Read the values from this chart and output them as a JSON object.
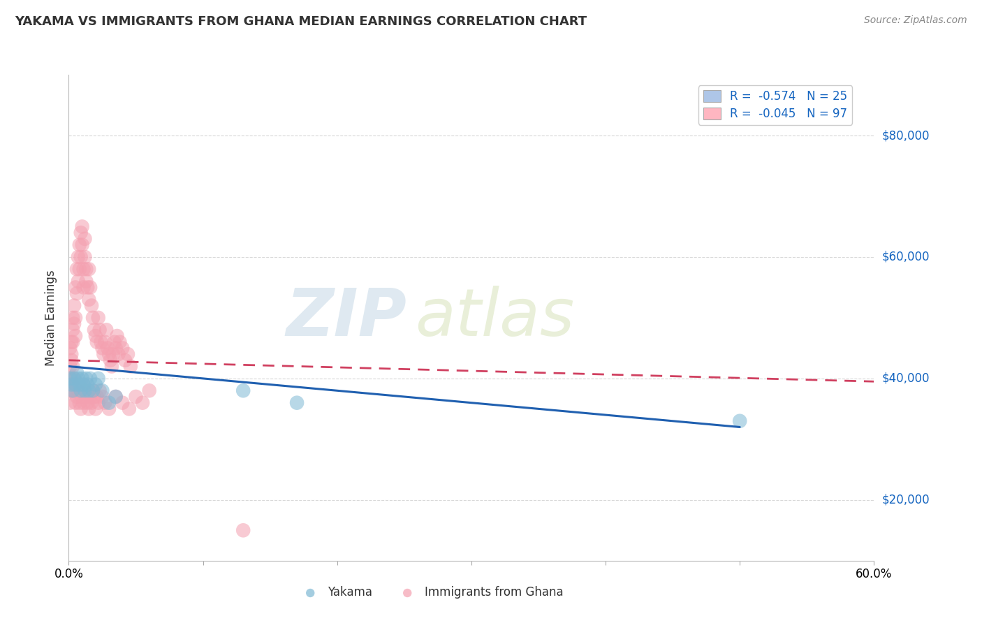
{
  "title": "YAKAMA VS IMMIGRANTS FROM GHANA MEDIAN EARNINGS CORRELATION CHART",
  "source_text": "Source: ZipAtlas.com",
  "ylabel": "Median Earnings",
  "yticks": [
    20000,
    40000,
    60000,
    80000
  ],
  "ytick_labels": [
    "$20,000",
    "$40,000",
    "$60,000",
    "$80,000"
  ],
  "legend_entries": [
    {
      "label": "R =  -0.574   N = 25",
      "facecolor": "#aec6e8"
    },
    {
      "label": "R =  -0.045   N = 97",
      "facecolor": "#ffb6c1"
    }
  ],
  "series1_name": "Yakama",
  "series2_name": "Immigrants from Ghana",
  "series1_color": "#7eb8d4",
  "series2_color": "#f4a0b0",
  "series1_line_color": "#2060b0",
  "series2_line_color": "#d04060",
  "watermark_text": "ZIP",
  "watermark_text2": "atlas",
  "background_color": "#ffffff",
  "plot_bg_color": "#ffffff",
  "grid_color": "#d8d8d8",
  "grid_style": "--",
  "xlim": [
    0.0,
    0.6
  ],
  "ylim": [
    10000,
    90000
  ],
  "xaxis_left_label": "0.0%",
  "xaxis_right_label": "60.0%",
  "yakama_x": [
    0.001,
    0.002,
    0.003,
    0.004,
    0.005,
    0.006,
    0.007,
    0.008,
    0.009,
    0.01,
    0.011,
    0.012,
    0.013,
    0.014,
    0.015,
    0.016,
    0.018,
    0.02,
    0.022,
    0.025,
    0.03,
    0.035,
    0.13,
    0.17,
    0.5
  ],
  "yakama_y": [
    40000,
    39000,
    38000,
    40000,
    39000,
    41000,
    40000,
    39000,
    38000,
    40000,
    39000,
    38000,
    40000,
    39000,
    38000,
    40000,
    38000,
    39000,
    40000,
    38000,
    36000,
    37000,
    38000,
    36000,
    33000
  ],
  "ghana_x": [
    0.001,
    0.001,
    0.001,
    0.002,
    0.002,
    0.002,
    0.003,
    0.003,
    0.003,
    0.004,
    0.004,
    0.005,
    0.005,
    0.005,
    0.006,
    0.006,
    0.007,
    0.007,
    0.008,
    0.008,
    0.009,
    0.009,
    0.01,
    0.01,
    0.011,
    0.011,
    0.012,
    0.012,
    0.013,
    0.013,
    0.014,
    0.015,
    0.015,
    0.016,
    0.017,
    0.018,
    0.019,
    0.02,
    0.021,
    0.022,
    0.023,
    0.024,
    0.025,
    0.026,
    0.027,
    0.028,
    0.029,
    0.03,
    0.031,
    0.032,
    0.033,
    0.034,
    0.035,
    0.036,
    0.037,
    0.038,
    0.04,
    0.042,
    0.044,
    0.046,
    0.001,
    0.001,
    0.002,
    0.002,
    0.003,
    0.003,
    0.004,
    0.004,
    0.005,
    0.006,
    0.007,
    0.008,
    0.009,
    0.01,
    0.011,
    0.012,
    0.013,
    0.014,
    0.015,
    0.016,
    0.017,
    0.018,
    0.019,
    0.02,
    0.021,
    0.022,
    0.023,
    0.025,
    0.027,
    0.03,
    0.035,
    0.04,
    0.045,
    0.05,
    0.055,
    0.06,
    0.13
  ],
  "ghana_y": [
    45000,
    42000,
    40000,
    43000,
    46000,
    44000,
    48000,
    50000,
    46000,
    52000,
    49000,
    47000,
    55000,
    50000,
    58000,
    54000,
    56000,
    60000,
    62000,
    58000,
    64000,
    60000,
    65000,
    62000,
    58000,
    55000,
    63000,
    60000,
    58000,
    56000,
    55000,
    53000,
    58000,
    55000,
    52000,
    50000,
    48000,
    47000,
    46000,
    50000,
    48000,
    46000,
    45000,
    44000,
    46000,
    48000,
    45000,
    44000,
    43000,
    42000,
    44000,
    46000,
    45000,
    47000,
    44000,
    46000,
    45000,
    43000,
    44000,
    42000,
    38000,
    36000,
    40000,
    38000,
    42000,
    39000,
    40000,
    38000,
    36000,
    37000,
    38000,
    36000,
    35000,
    37000,
    36000,
    38000,
    37000,
    36000,
    35000,
    37000,
    36000,
    38000,
    37000,
    35000,
    37000,
    36000,
    38000,
    37000,
    36000,
    35000,
    37000,
    36000,
    35000,
    37000,
    36000,
    38000,
    15000
  ],
  "yakama_line_x0": 0.0,
  "yakama_line_x1": 0.5,
  "yakama_line_y0": 42000,
  "yakama_line_y1": 32000,
  "ghana_line_x0": 0.0,
  "ghana_line_x1": 0.6,
  "ghana_line_y0": 43000,
  "ghana_line_y1": 39500
}
